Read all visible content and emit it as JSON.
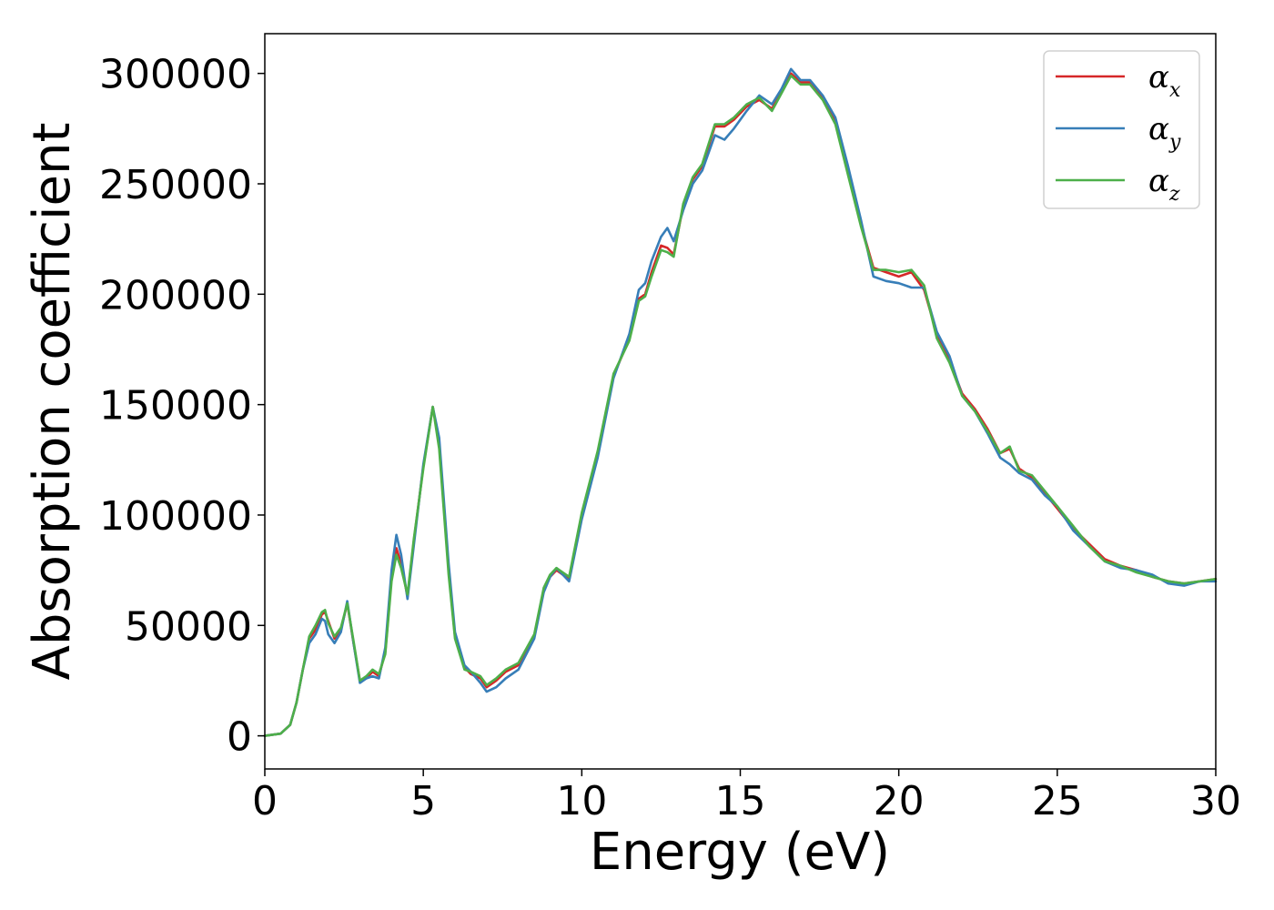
{
  "chart_data": {
    "type": "line",
    "title": "",
    "xlabel": "Energy (eV)",
    "ylabel": "Absorption coefficient",
    "xlim": [
      0,
      30
    ],
    "ylim": [
      -15000,
      318000
    ],
    "xticks": [
      0,
      5,
      10,
      15,
      20,
      25,
      30
    ],
    "xtick_labels": [
      "0",
      "5",
      "10",
      "15",
      "20",
      "25",
      "30"
    ],
    "yticks": [
      0,
      50000,
      100000,
      150000,
      200000,
      250000,
      300000
    ],
    "ytick_labels": [
      "0",
      "50000",
      "100000",
      "150000",
      "200000",
      "250000",
      "300000"
    ],
    "grid": false,
    "legend": {
      "position": "top-right"
    },
    "x": [
      0,
      0.5,
      0.8,
      1.0,
      1.2,
      1.4,
      1.6,
      1.8,
      1.9,
      2.0,
      2.2,
      2.4,
      2.6,
      2.8,
      3.0,
      3.2,
      3.4,
      3.6,
      3.8,
      4.0,
      4.15,
      4.3,
      4.5,
      4.7,
      5.0,
      5.3,
      5.5,
      5.8,
      6.0,
      6.3,
      6.5,
      6.8,
      7.0,
      7.3,
      7.6,
      8.0,
      8.5,
      8.8,
      9.0,
      9.2,
      9.6,
      10.0,
      10.5,
      11.0,
      11.5,
      11.8,
      12.0,
      12.2,
      12.5,
      12.7,
      12.9,
      13.2,
      13.5,
      13.8,
      14.2,
      14.5,
      14.8,
      15.2,
      15.6,
      16.0,
      16.3,
      16.6,
      16.9,
      17.2,
      17.6,
      18.0,
      18.4,
      18.8,
      19.2,
      19.6,
      20.0,
      20.4,
      20.8,
      21.2,
      21.6,
      22.0,
      22.4,
      22.8,
      23.2,
      23.5,
      23.8,
      24.2,
      24.6,
      25.0,
      25.5,
      26.0,
      26.5,
      27.0,
      27.5,
      28.0,
      28.5,
      29.0,
      29.5,
      30.0
    ],
    "series": [
      {
        "name": "x",
        "color": "#d62728",
        "values": [
          0,
          1000,
          5000,
          15000,
          30000,
          44000,
          48000,
          55000,
          56000,
          52000,
          44000,
          48000,
          60000,
          42000,
          25000,
          26000,
          29000,
          27000,
          38000,
          72000,
          85000,
          78000,
          63000,
          88000,
          122000,
          149000,
          132000,
          75000,
          45000,
          31000,
          28000,
          26000,
          22000,
          25000,
          29000,
          32000,
          45000,
          66000,
          72000,
          75000,
          71000,
          100000,
          128000,
          163000,
          180000,
          198000,
          200000,
          210000,
          222000,
          221000,
          218000,
          240000,
          252000,
          258000,
          276000,
          276000,
          279000,
          285000,
          288000,
          284000,
          292000,
          300000,
          296000,
          296000,
          289000,
          278000,
          255000,
          232000,
          212000,
          210000,
          208000,
          210000,
          202000,
          182000,
          170000,
          155000,
          148000,
          139000,
          128000,
          130000,
          121000,
          117000,
          110000,
          103000,
          94000,
          87000,
          80000,
          77000,
          75000,
          72000,
          70000,
          69000,
          70000,
          71000
        ]
      },
      {
        "name": "y",
        "color": "#377eb8",
        "values": [
          0,
          1000,
          5000,
          15000,
          30000,
          42000,
          46000,
          53000,
          52000,
          46000,
          42000,
          47000,
          61000,
          42000,
          24000,
          26000,
          27000,
          26000,
          40000,
          75000,
          91000,
          82000,
          62000,
          86000,
          123000,
          149000,
          135000,
          78000,
          47000,
          32000,
          29000,
          24000,
          20000,
          22000,
          26000,
          30000,
          44000,
          65000,
          72000,
          76000,
          70000,
          98000,
          126000,
          162000,
          182000,
          202000,
          205000,
          215000,
          226000,
          230000,
          224000,
          238000,
          250000,
          256000,
          272000,
          270000,
          275000,
          283000,
          290000,
          286000,
          293000,
          302000,
          297000,
          297000,
          290000,
          280000,
          258000,
          234000,
          208000,
          206000,
          205000,
          203000,
          203000,
          183000,
          172000,
          154000,
          147000,
          137000,
          126000,
          123000,
          119000,
          116000,
          109000,
          104000,
          93000,
          86000,
          79000,
          76000,
          75000,
          73000,
          69000,
          68000,
          70000,
          70000
        ]
      },
      {
        "name": "z",
        "color": "#4daf4a",
        "values": [
          0,
          1000,
          5000,
          15000,
          30000,
          45000,
          50000,
          56000,
          57000,
          51000,
          45000,
          49000,
          60000,
          43000,
          25000,
          27000,
          30000,
          28000,
          37000,
          70000,
          82000,
          76000,
          64000,
          89000,
          121000,
          149000,
          130000,
          73000,
          44000,
          30000,
          29000,
          27000,
          23000,
          26000,
          30000,
          33000,
          46000,
          67000,
          73000,
          76000,
          72000,
          101000,
          129000,
          164000,
          179000,
          197000,
          199000,
          208000,
          220000,
          219000,
          217000,
          241000,
          253000,
          259000,
          277000,
          277000,
          280000,
          286000,
          289000,
          283000,
          291000,
          299000,
          295000,
          295000,
          288000,
          277000,
          254000,
          231000,
          211000,
          211000,
          210000,
          211000,
          204000,
          180000,
          169000,
          154000,
          147000,
          138000,
          128000,
          131000,
          120000,
          118000,
          111000,
          104000,
          95000,
          86000,
          79000,
          77000,
          74000,
          72000,
          70000,
          69000,
          70000,
          71000
        ]
      }
    ]
  },
  "legend_symbol": "α"
}
